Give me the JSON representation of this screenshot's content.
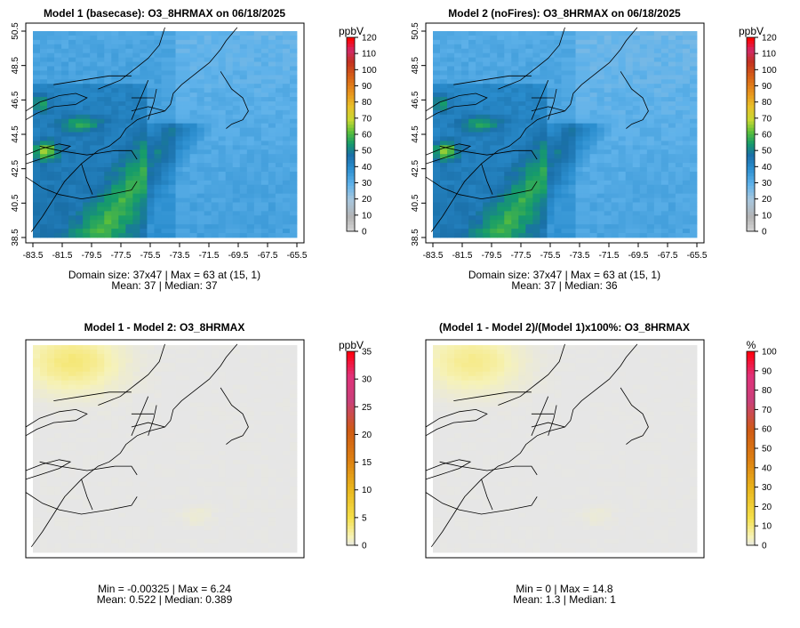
{
  "figure": {
    "domain_size": "Domain size: 37x47",
    "panels_note": "Four map panels of O3_8HRMAX"
  },
  "chart_data": [
    {
      "type": "heatmap",
      "id": "p1",
      "title": "Model 1 (basecase): O3_8HRMAX on 06/18/2025",
      "unit": "ppbV",
      "colorbar_ticks": [
        "0",
        "10",
        "20",
        "30",
        "40",
        "50",
        "60",
        "70",
        "80",
        "90",
        "100",
        "110",
        "120"
      ],
      "colorbar_range": [
        0,
        120
      ],
      "palette": "ozone",
      "x_ticks": [
        "-83.5",
        "-81.5",
        "-79.5",
        "-77.5",
        "-75.5",
        "-73.5",
        "-71.5",
        "-69.5",
        "-67.5",
        "-65.5"
      ],
      "y_ticks": [
        "38.5",
        "40.5",
        "42.5",
        "44.5",
        "46.5",
        "48.5",
        "50.5"
      ],
      "xlim": [
        -83.5,
        -65.5
      ],
      "ylim": [
        38.5,
        50.5
      ],
      "stats_line1": "Domain size: 37x47 | Max = 63 at (15, 1)",
      "stats_line2": "Mean: 37 |  Median: 37",
      "base_value": 37,
      "max_value": 63
    },
    {
      "type": "heatmap",
      "id": "p2",
      "title": "Model 2 (noFires): O3_8HRMAX on 06/18/2025",
      "unit": "ppbV",
      "colorbar_ticks": [
        "0",
        "10",
        "20",
        "30",
        "40",
        "50",
        "60",
        "70",
        "80",
        "90",
        "100",
        "110",
        "120"
      ],
      "colorbar_range": [
        0,
        120
      ],
      "palette": "ozone",
      "x_ticks": [
        "-83.5",
        "-81.5",
        "-79.5",
        "-77.5",
        "-75.5",
        "-73.5",
        "-71.5",
        "-69.5",
        "-67.5",
        "-65.5"
      ],
      "y_ticks": [
        "38.5",
        "40.5",
        "42.5",
        "44.5",
        "46.5",
        "48.5",
        "50.5"
      ],
      "xlim": [
        -83.5,
        -65.5
      ],
      "ylim": [
        38.5,
        50.5
      ],
      "stats_line1": "Domain size: 37x47 | Max = 63 at (15, 1)",
      "stats_line2": "Mean: 37 |  Median: 36",
      "base_value": 36,
      "max_value": 63
    },
    {
      "type": "heatmap",
      "id": "p3",
      "title": "Model 1 - Model 2: O3_8HRMAX",
      "unit": "ppbV",
      "colorbar_ticks": [
        "0",
        "5",
        "10",
        "15",
        "20",
        "25",
        "30",
        "35"
      ],
      "colorbar_range": [
        0,
        35
      ],
      "palette": "diff",
      "x_ticks": [],
      "y_ticks": [],
      "stats_line1": "Min = -0.00325 | Max = 6.24",
      "stats_line2": "Mean: 0.522 |  Median: 0.389",
      "base_value": 0.389,
      "max_value": 6.24
    },
    {
      "type": "heatmap",
      "id": "p4",
      "title": "(Model 1 - Model 2)/(Model 1)x100%: O3_8HRMAX",
      "unit": "%",
      "colorbar_ticks": [
        "0",
        "10",
        "20",
        "30",
        "40",
        "50",
        "60",
        "70",
        "80",
        "90",
        "100"
      ],
      "colorbar_range": [
        0,
        100
      ],
      "palette": "diff",
      "x_ticks": [],
      "y_ticks": [],
      "stats_line1": "Min = 0 | Max = 14.8",
      "stats_line2": "Mean: 1.3 |  Median: 1",
      "base_value": 1,
      "max_value": 14.8
    }
  ],
  "colors": {
    "map_frame": "#000000",
    "ocean_blue": "#4aa3e0",
    "land_blue": "#2a88c8",
    "diff_gray": "#e3e3e3",
    "diff_yellow": "#f5ea6a"
  }
}
